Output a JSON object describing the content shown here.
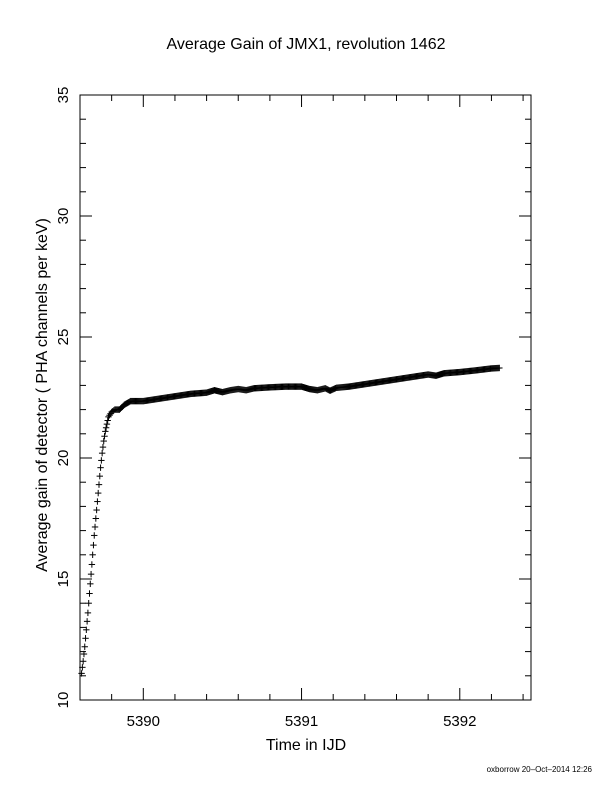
{
  "footer": "oxborrow 20–Oct–2014 12:26",
  "chart_data": {
    "type": "scatter",
    "title": "Average Gain of JMX1, revolution 1462",
    "xlabel": "Time in IJD",
    "ylabel": "Average gain of detector ( PHA channels per keV)",
    "xlim": [
      5389.6,
      5392.45
    ],
    "ylim": [
      10,
      35
    ],
    "xticks": [
      5390,
      5391,
      5392
    ],
    "yticks": [
      10,
      15,
      20,
      25,
      30,
      35
    ],
    "marker": "plus",
    "color": "#000000",
    "grid": false,
    "series": [
      {
        "points": [
          [
            5389.61,
            11.1
          ],
          [
            5389.62,
            11.6
          ],
          [
            5389.63,
            12.2
          ],
          [
            5389.64,
            12.9
          ],
          [
            5389.65,
            13.6
          ],
          [
            5389.66,
            14.4
          ],
          [
            5389.67,
            15.2
          ],
          [
            5389.68,
            16.0
          ],
          [
            5389.69,
            16.8
          ],
          [
            5389.7,
            17.5
          ],
          [
            5389.71,
            18.2
          ],
          [
            5389.72,
            18.9
          ],
          [
            5389.73,
            19.6
          ],
          [
            5389.74,
            20.2
          ],
          [
            5389.75,
            20.7
          ],
          [
            5389.76,
            21.1
          ],
          [
            5389.77,
            21.4
          ],
          [
            5389.78,
            21.7
          ],
          [
            5389.8,
            21.9
          ],
          [
            5389.82,
            22.0
          ],
          [
            5389.85,
            22.0
          ],
          [
            5389.88,
            22.2
          ],
          [
            5389.92,
            22.35
          ],
          [
            5390.0,
            22.35
          ],
          [
            5390.1,
            22.45
          ],
          [
            5390.2,
            22.55
          ],
          [
            5390.3,
            22.65
          ],
          [
            5390.4,
            22.7
          ],
          [
            5390.45,
            22.8
          ],
          [
            5390.5,
            22.72
          ],
          [
            5390.55,
            22.8
          ],
          [
            5390.6,
            22.85
          ],
          [
            5390.65,
            22.8
          ],
          [
            5390.7,
            22.88
          ],
          [
            5390.8,
            22.92
          ],
          [
            5390.9,
            22.95
          ],
          [
            5391.0,
            22.95
          ],
          [
            5391.05,
            22.85
          ],
          [
            5391.1,
            22.8
          ],
          [
            5391.15,
            22.88
          ],
          [
            5391.18,
            22.78
          ],
          [
            5391.22,
            22.9
          ],
          [
            5391.3,
            22.95
          ],
          [
            5391.4,
            23.05
          ],
          [
            5391.5,
            23.15
          ],
          [
            5391.6,
            23.25
          ],
          [
            5391.7,
            23.35
          ],
          [
            5391.8,
            23.45
          ],
          [
            5391.85,
            23.4
          ],
          [
            5391.9,
            23.5
          ],
          [
            5392.0,
            23.55
          ],
          [
            5392.1,
            23.62
          ],
          [
            5392.2,
            23.7
          ],
          [
            5392.25,
            23.72
          ]
        ]
      }
    ]
  }
}
